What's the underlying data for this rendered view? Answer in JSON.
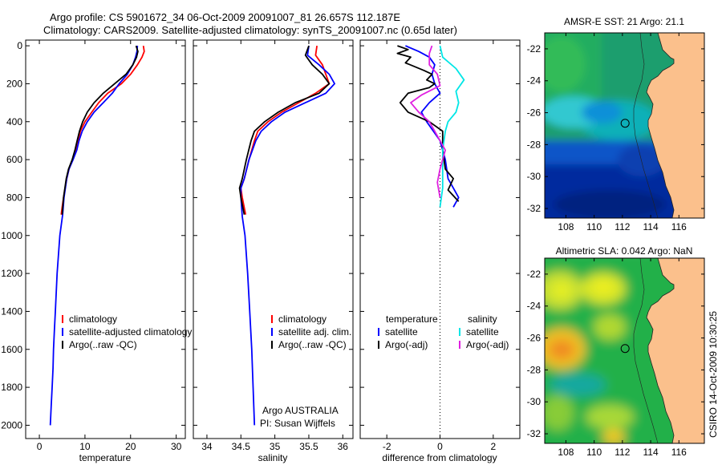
{
  "header": {
    "title_line1": "Argo profile: CS 5901672_34 06-Oct-2009 20091007_81 26.657S 112.187E",
    "title_line2": "Climatology: CARS2009. Satellite-adjusted climatology: synTS_20091007.nc (0.65d later)"
  },
  "side_label": "CSIRO 14-Oct-2009 10:30:25",
  "footer_note": {
    "line1": "Argo AUSTRALIA",
    "line2": "PI: Susan Wijffels"
  },
  "colors": {
    "climatology": "#ff0000",
    "satellite": "#0000ff",
    "argo": "#000000",
    "sal_satellite": "#00e6e6",
    "sal_argo": "#e020e0"
  },
  "chart_data": [
    {
      "type": "line",
      "xlabel": "temperature",
      "xlim": [
        -3,
        32
      ],
      "xticks": [
        0,
        10,
        20,
        30
      ],
      "ylim": [
        2070,
        -30
      ],
      "yticks": [
        0,
        200,
        400,
        600,
        800,
        1000,
        1200,
        1400,
        1600,
        1800,
        2000
      ],
      "legend": [
        "climatology",
        "satellite-adjusted climatology",
        "Argo(..raw -QC)"
      ],
      "series": [
        {
          "name": "climatology",
          "color": "#ff0000",
          "points": [
            [
              22.8,
              0
            ],
            [
              23,
              30
            ],
            [
              22.5,
              60
            ],
            [
              21.5,
              100
            ],
            [
              20,
              150
            ],
            [
              18,
              200
            ],
            [
              15,
              250
            ],
            [
              13,
              300
            ],
            [
              11.5,
              350
            ],
            [
              10,
              400
            ],
            [
              9,
              450
            ],
            [
              8.5,
              500
            ],
            [
              8,
              550
            ],
            [
              7.3,
              600
            ],
            [
              6.5,
              650
            ],
            [
              6,
              700
            ],
            [
              5.3,
              800
            ],
            [
              5,
              850
            ],
            [
              4.8,
              890
            ]
          ]
        },
        {
          "name": "satellite-adjusted climatology",
          "color": "#0000ff",
          "points": [
            [
              21.5,
              0
            ],
            [
              21.4,
              30
            ],
            [
              21.1,
              60
            ],
            [
              20.5,
              100
            ],
            [
              19.3,
              150
            ],
            [
              17.5,
              200
            ],
            [
              16,
              250
            ],
            [
              14,
              300
            ],
            [
              12,
              350
            ],
            [
              10.5,
              400
            ],
            [
              9.4,
              450
            ],
            [
              8.7,
              500
            ],
            [
              8.2,
              550
            ],
            [
              7.4,
              600
            ],
            [
              6.5,
              650
            ],
            [
              6,
              700
            ],
            [
              5.4,
              800
            ],
            [
              5.1,
              890
            ],
            [
              4.5,
              1000
            ],
            [
              4.2,
              1100
            ],
            [
              3.9,
              1200
            ],
            [
              3.7,
              1300
            ],
            [
              3.5,
              1400
            ],
            [
              3.3,
              1500
            ],
            [
              3.1,
              1600
            ],
            [
              3,
              1700
            ],
            [
              2.8,
              1800
            ],
            [
              2.6,
              1900
            ],
            [
              2.4,
              2000
            ]
          ]
        },
        {
          "name": "Argo(..raw -QC)",
          "color": "#000000",
          "points": [
            [
              21.2,
              0
            ],
            [
              21.6,
              30
            ],
            [
              21.3,
              60
            ],
            [
              20.5,
              100
            ],
            [
              19,
              150
            ],
            [
              16.5,
              200
            ],
            [
              14,
              250
            ],
            [
              12,
              300
            ],
            [
              10.5,
              350
            ],
            [
              9.5,
              400
            ],
            [
              8.8,
              450
            ],
            [
              8.3,
              500
            ],
            [
              7.8,
              550
            ],
            [
              7.2,
              600
            ],
            [
              6.4,
              650
            ],
            [
              5.9,
              700
            ],
            [
              5.3,
              800
            ],
            [
              5,
              890
            ]
          ]
        }
      ]
    },
    {
      "type": "line",
      "xlabel": "salinity",
      "xlim": [
        33.8,
        36.15
      ],
      "xticks": [
        34,
        34.5,
        35,
        35.5,
        36
      ],
      "ylim": [
        2070,
        -30
      ],
      "legend": [
        "climatology",
        "satellite adj. clim.",
        "Argo(..raw -QC)"
      ],
      "series": [
        {
          "name": "climatology",
          "color": "#ff0000",
          "points": [
            [
              35.62,
              0
            ],
            [
              35.6,
              50
            ],
            [
              35.7,
              100
            ],
            [
              35.75,
              150
            ],
            [
              35.8,
              200
            ],
            [
              35.6,
              250
            ],
            [
              35.35,
              300
            ],
            [
              35.1,
              350
            ],
            [
              34.9,
              400
            ],
            [
              34.75,
              450
            ],
            [
              34.7,
              500
            ],
            [
              34.62,
              600
            ],
            [
              34.55,
              700
            ],
            [
              34.5,
              750
            ],
            [
              34.52,
              800
            ],
            [
              34.57,
              890
            ]
          ]
        },
        {
          "name": "satellite adj. clim.",
          "color": "#0000ff",
          "points": [
            [
              35.5,
              0
            ],
            [
              35.48,
              50
            ],
            [
              35.65,
              100
            ],
            [
              35.8,
              150
            ],
            [
              35.88,
              200
            ],
            [
              35.75,
              250
            ],
            [
              35.45,
              300
            ],
            [
              35.15,
              350
            ],
            [
              34.95,
              400
            ],
            [
              34.8,
              450
            ],
            [
              34.72,
              500
            ],
            [
              34.62,
              600
            ],
            [
              34.55,
              700
            ],
            [
              34.5,
              750
            ],
            [
              34.5,
              800
            ],
            [
              34.52,
              900
            ],
            [
              34.56,
              1000
            ],
            [
              34.6,
              1200
            ],
            [
              34.63,
              1400
            ],
            [
              34.66,
              1600
            ],
            [
              34.68,
              1800
            ],
            [
              34.7,
              2000
            ]
          ]
        },
        {
          "name": "Argo(..raw -QC)",
          "color": "#000000",
          "points": [
            [
              35.5,
              0
            ],
            [
              35.45,
              50
            ],
            [
              35.55,
              100
            ],
            [
              35.7,
              150
            ],
            [
              35.8,
              200
            ],
            [
              35.65,
              250
            ],
            [
              35.3,
              300
            ],
            [
              35.05,
              350
            ],
            [
              34.85,
              400
            ],
            [
              34.7,
              450
            ],
            [
              34.65,
              500
            ],
            [
              34.58,
              600
            ],
            [
              34.52,
              700
            ],
            [
              34.48,
              750
            ],
            [
              34.5,
              800
            ],
            [
              34.55,
              890
            ]
          ]
        }
      ]
    },
    {
      "type": "line",
      "xlabel": "difference from climatology",
      "xlim": [
        -3,
        3
      ],
      "xticks": [
        -2,
        0,
        2
      ],
      "ylim": [
        2070,
        -30
      ],
      "legend_headers": [
        "temperature",
        "salinity"
      ],
      "legend": [
        "satellite",
        "Argo(-adj)",
        "satellite",
        "Argo(-adj)"
      ],
      "series": [
        {
          "name": "satellite",
          "color": "#0000ff",
          "points": [
            [
              -1.3,
              0
            ],
            [
              -0.8,
              30
            ],
            [
              -0.4,
              60
            ],
            [
              -0.2,
              100
            ],
            [
              -0.3,
              150
            ],
            [
              -0.2,
              200
            ],
            [
              0,
              250
            ],
            [
              -0.4,
              300
            ],
            [
              -0.7,
              350
            ],
            [
              -0.5,
              400
            ],
            [
              0,
              500
            ],
            [
              0.2,
              600
            ],
            [
              0.3,
              700
            ],
            [
              0.5,
              750
            ],
            [
              0.7,
              800
            ],
            [
              0.5,
              850
            ]
          ]
        },
        {
          "name": "Argo(-adj)",
          "color": "#000000",
          "points": [
            [
              -1.6,
              0
            ],
            [
              -1.2,
              20
            ],
            [
              -1.6,
              40
            ],
            [
              -1.1,
              60
            ],
            [
              -1.3,
              90
            ],
            [
              -0.6,
              130
            ],
            [
              -0.3,
              150
            ],
            [
              -0.5,
              180
            ],
            [
              -0.2,
              200
            ],
            [
              -0.4,
              220
            ],
            [
              -1.2,
              250
            ],
            [
              -1.5,
              300
            ],
            [
              -1.2,
              350
            ],
            [
              -0.4,
              400
            ],
            [
              0.1,
              450
            ],
            [
              0.1,
              550
            ],
            [
              0.2,
              650
            ],
            [
              0.5,
              700
            ],
            [
              0.3,
              760
            ],
            [
              0.7,
              820
            ]
          ]
        },
        {
          "name": "satellite",
          "color": "#00e6e6",
          "points": [
            [
              0,
              0
            ],
            [
              0.1,
              60
            ],
            [
              0.6,
              120
            ],
            [
              0.9,
              180
            ],
            [
              0.6,
              240
            ],
            [
              0.7,
              300
            ],
            [
              0.6,
              350
            ],
            [
              0.3,
              400
            ],
            [
              0.2,
              450
            ],
            [
              0.1,
              550
            ],
            [
              0.1,
              650
            ],
            [
              0.1,
              750
            ],
            [
              0,
              850
            ]
          ]
        },
        {
          "name": "Argo(-adj)",
          "color": "#e020e0",
          "points": [
            [
              -0.3,
              0
            ],
            [
              -0.4,
              40
            ],
            [
              -0.4,
              100
            ],
            [
              -0.1,
              150
            ],
            [
              0,
              210
            ],
            [
              -0.7,
              260
            ],
            [
              -1.1,
              300
            ],
            [
              -0.8,
              350
            ],
            [
              -0.4,
              400
            ],
            [
              -0.2,
              450
            ],
            [
              0,
              500
            ],
            [
              0.2,
              550
            ],
            [
              0,
              650
            ],
            [
              -0.1,
              720
            ],
            [
              0,
              800
            ]
          ]
        }
      ]
    },
    {
      "type": "heatmap",
      "title": "AMSR-E SST: 21  Argo: 21.1",
      "xlim": [
        106.5,
        117.8
      ],
      "xticks": [
        108,
        110,
        112,
        114,
        116
      ],
      "ylim": [
        -32.6,
        -21
      ],
      "yticks": [
        -22,
        -24,
        -26,
        -28,
        -30,
        -32
      ],
      "marker": {
        "lon": 112.19,
        "lat": -26.66
      }
    },
    {
      "type": "heatmap",
      "title": "Altimetric SLA: 0.042  Argo: NaN",
      "xlim": [
        106.5,
        117.8
      ],
      "xticks": [
        108,
        110,
        112,
        114,
        116
      ],
      "ylim": [
        -32.6,
        -21
      ],
      "yticks": [
        -22,
        -24,
        -26,
        -28,
        -30,
        -32
      ],
      "marker": {
        "lon": 112.19,
        "lat": -26.66
      }
    }
  ]
}
